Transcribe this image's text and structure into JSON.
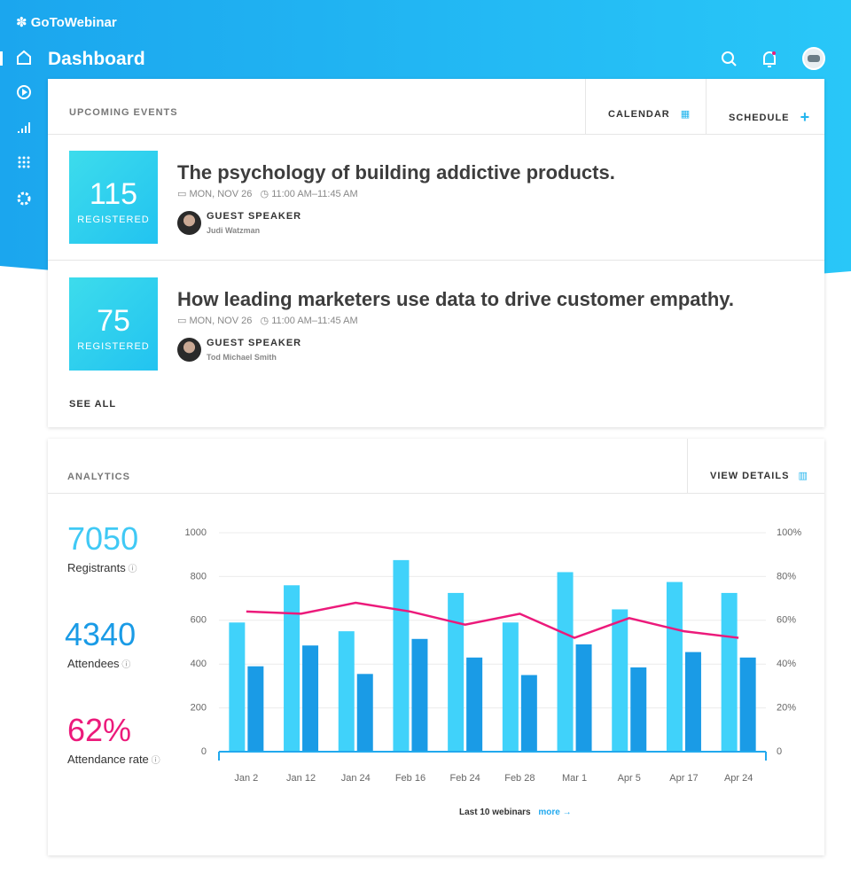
{
  "header": {
    "logo": "GoToWebinar",
    "page_title": "Dashboard"
  },
  "events": {
    "title": "UPCOMING EVENTS",
    "actions": [
      "CALENDAR",
      "SCHEDULE"
    ],
    "items": [
      {
        "registered": "115",
        "registered_label": "REGISTERED",
        "title": "The psychology of building addictive products.",
        "date": "MON, NOV 26",
        "time": "11:00 AM–11:45 AM",
        "role": "GUEST SPEAKER",
        "speaker": "Judi Watzman"
      },
      {
        "registered": "75",
        "registered_label": "REGISTERED",
        "title": "How leading marketers use data to drive customer empathy.",
        "date": "MON, NOV 26",
        "time": "11:00 AM–11:45 AM",
        "role": "GUEST SPEAKER",
        "speaker": "Tod Michael Smith"
      }
    ],
    "see_all": "SEE ALL"
  },
  "analytics": {
    "title": "ANALYTICS",
    "action": "VIEW DETAILS",
    "stats": [
      {
        "value": "7050",
        "label": "Registrants",
        "color": "#40c9f5"
      },
      {
        "value": "4340",
        "label": "Attendees",
        "color": "#1a9be6"
      },
      {
        "value": "62%",
        "label": "Attendance rate",
        "color": "#ec1a7b"
      }
    ],
    "chart_data": {
      "type": "bar",
      "categories": [
        "Jan 2",
        "Jan 12",
        "Jan 24",
        "Feb 16",
        "Feb 24",
        "Feb 28",
        "Mar 1",
        "Apr 5",
        "Apr 17",
        "Apr 24"
      ],
      "series": [
        {
          "color": "#40d2fa",
          "values": [
            590,
            760,
            550,
            875,
            725,
            590,
            820,
            650,
            775,
            725
          ]
        },
        {
          "color": "#1a9be6",
          "values": [
            390,
            485,
            355,
            515,
            430,
            350,
            490,
            385,
            455,
            430
          ]
        },
        {
          "type": "line",
          "axis": "y2",
          "color": "#ec1a7b",
          "values": [
            64,
            63,
            68,
            64,
            58,
            63,
            52,
            61,
            55,
            52
          ]
        }
      ],
      "ylim": [
        0,
        1000
      ],
      "yticks": [
        0,
        200,
        400,
        600,
        800,
        1000
      ],
      "y2lim": [
        0,
        100
      ],
      "y2ticks": [
        {
          "value": 0,
          "label": "0"
        },
        {
          "value": 20,
          "label": "20%"
        },
        {
          "value": 40,
          "label": "40%"
        },
        {
          "value": 60,
          "label": "60%"
        },
        {
          "value": 80,
          "label": "80%"
        },
        {
          "value": 100,
          "label": "100%"
        }
      ],
      "grid": true,
      "axis_color": "#22a9ee",
      "caption": "Last 10 webinars",
      "more": "more"
    }
  }
}
